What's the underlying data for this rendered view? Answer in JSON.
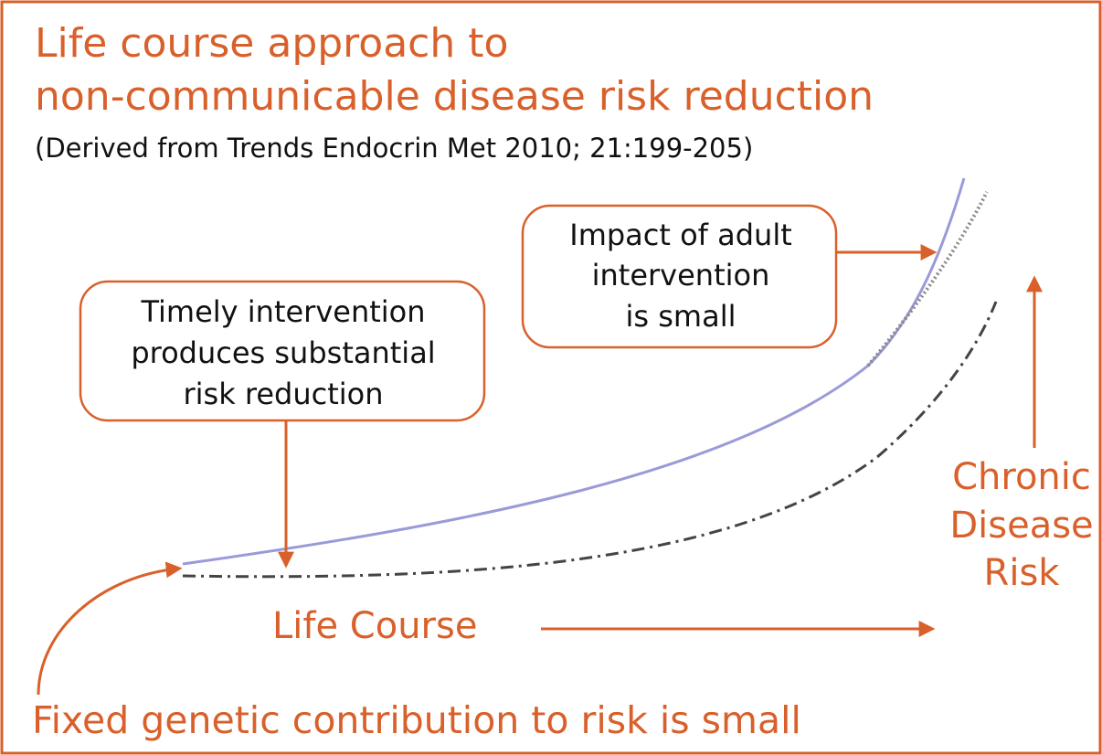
{
  "title": [
    "Life course approach to",
    "non-communicable disease risk reduction"
  ],
  "subtitle": "(Derived from Trends Endocrin Met 2010; 21:199-205)",
  "callouts": [
    {
      "lines": [
        "Timely intervention",
        "produces substantial",
        "risk reduction"
      ]
    },
    {
      "lines": [
        "Impact of adult",
        "intervention",
        "is small"
      ]
    }
  ],
  "x_axis_label": "Life Course",
  "y_axis_label": [
    "Chronic",
    "Disease",
    "Risk"
  ],
  "footer": "Fixed genetic contribution to risk is small"
}
